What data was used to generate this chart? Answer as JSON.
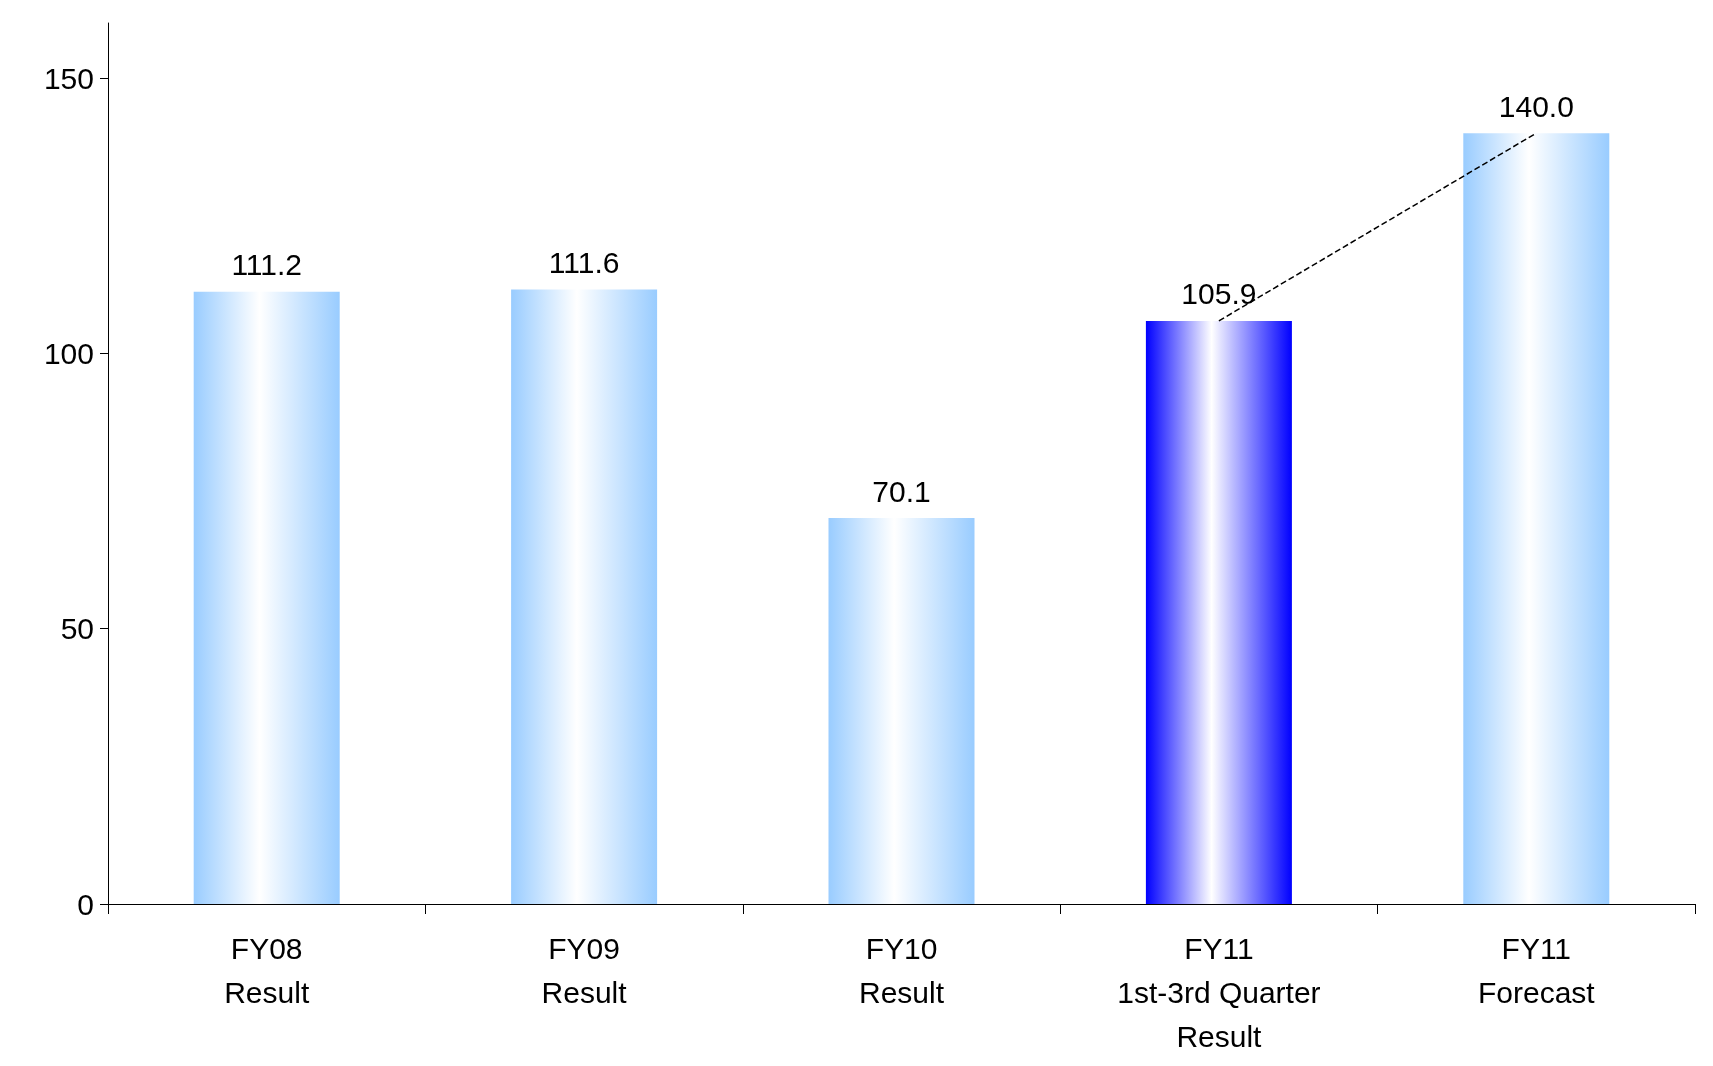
{
  "chart_data": {
    "type": "bar",
    "categories": [
      "FY08\nResult",
      "FY09\nResult",
      "FY10\nResult",
      "FY11\n1st-3rd Quarter\nResult",
      "FY11\nForecast"
    ],
    "series": [
      {
        "values": [
          111.2,
          111.6,
          70.1,
          105.9,
          140.0
        ],
        "colors": [
          "#99ccff",
          "#99ccff",
          "#99ccff",
          "#0000ff",
          "#99ccff"
        ],
        "value_labels": [
          "111.2",
          "111.6",
          "70.1",
          "105.9",
          "140.0"
        ]
      },
      {
        "type": "line",
        "values": [
          null,
          null,
          null,
          105.9,
          140.0
        ],
        "color": "#000000",
        "line_style": "dashed",
        "marker": "none"
      }
    ],
    "ylim": [
      0,
      160
    ],
    "yticks": [
      0,
      50,
      100,
      150
    ],
    "grid": false
  }
}
